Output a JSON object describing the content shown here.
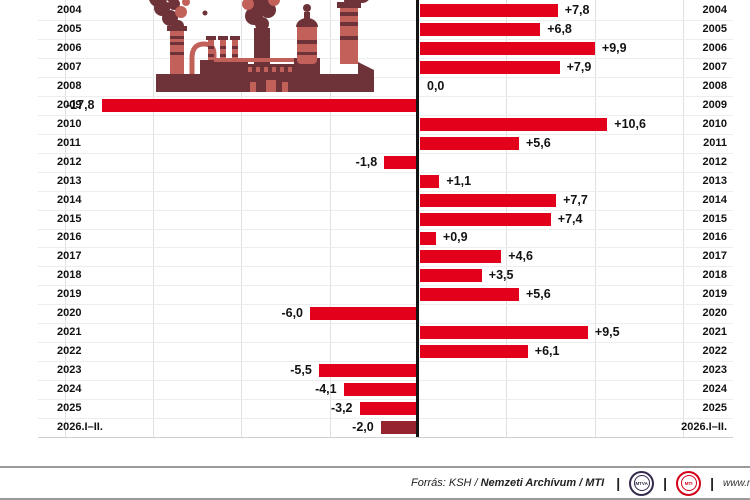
{
  "chart_data": {
    "type": "bar",
    "orientation": "horizontal",
    "title": "",
    "categories": [
      "2004",
      "2005",
      "2006",
      "2007",
      "2008",
      "2009",
      "2010",
      "2011",
      "2012",
      "2013",
      "2014",
      "2015",
      "2016",
      "2017",
      "2018",
      "2019",
      "2020",
      "2021",
      "2022",
      "2023",
      "2024",
      "2025",
      "2026.I–II."
    ],
    "values": [
      7.8,
      6.8,
      9.9,
      7.9,
      0.0,
      -17.8,
      10.6,
      5.6,
      -1.8,
      1.1,
      7.7,
      7.4,
      0.9,
      4.6,
      3.5,
      5.6,
      -6.0,
      9.5,
      6.1,
      -5.5,
      -4.1,
      -3.2,
      -2.0
    ],
    "value_labels": [
      "+7,8",
      "+6,8",
      "+9,9",
      "+7,9",
      "0,0",
      "-17,8",
      "+10,6",
      "+5,6",
      "-1,8",
      "+1,1",
      "+7,7",
      "+7,4",
      "+0,9",
      "+4,6",
      "+3,5",
      "+5,6",
      "-6,0",
      "+9,5",
      "+6,1",
      "-5,5",
      "-4,1",
      "-3,2",
      "-2,0"
    ],
    "xlim": [
      -21.5,
      17.8
    ],
    "gridlines_x": [
      -20,
      -15,
      -10,
      -5,
      5,
      10,
      15
    ],
    "grid": true,
    "legend": "none",
    "category_labels_position": "both-sides",
    "bar_color": "#e2001a",
    "highlight_bar_color": "#96242f",
    "highlight_index": 22
  },
  "illustration": {
    "name": "factory-smokestacks",
    "dark_color": "#6e3239",
    "light_color": "#c2605a"
  },
  "footer": {
    "source_prefix": "Forrás: KSH /",
    "source_bold": "Nemzeti Archívum",
    "source_suffix": "/ MTI",
    "separator": "|",
    "logos": [
      {
        "label": "MTVA"
      },
      {
        "label": "MTI"
      }
    ],
    "website": "www.m"
  }
}
